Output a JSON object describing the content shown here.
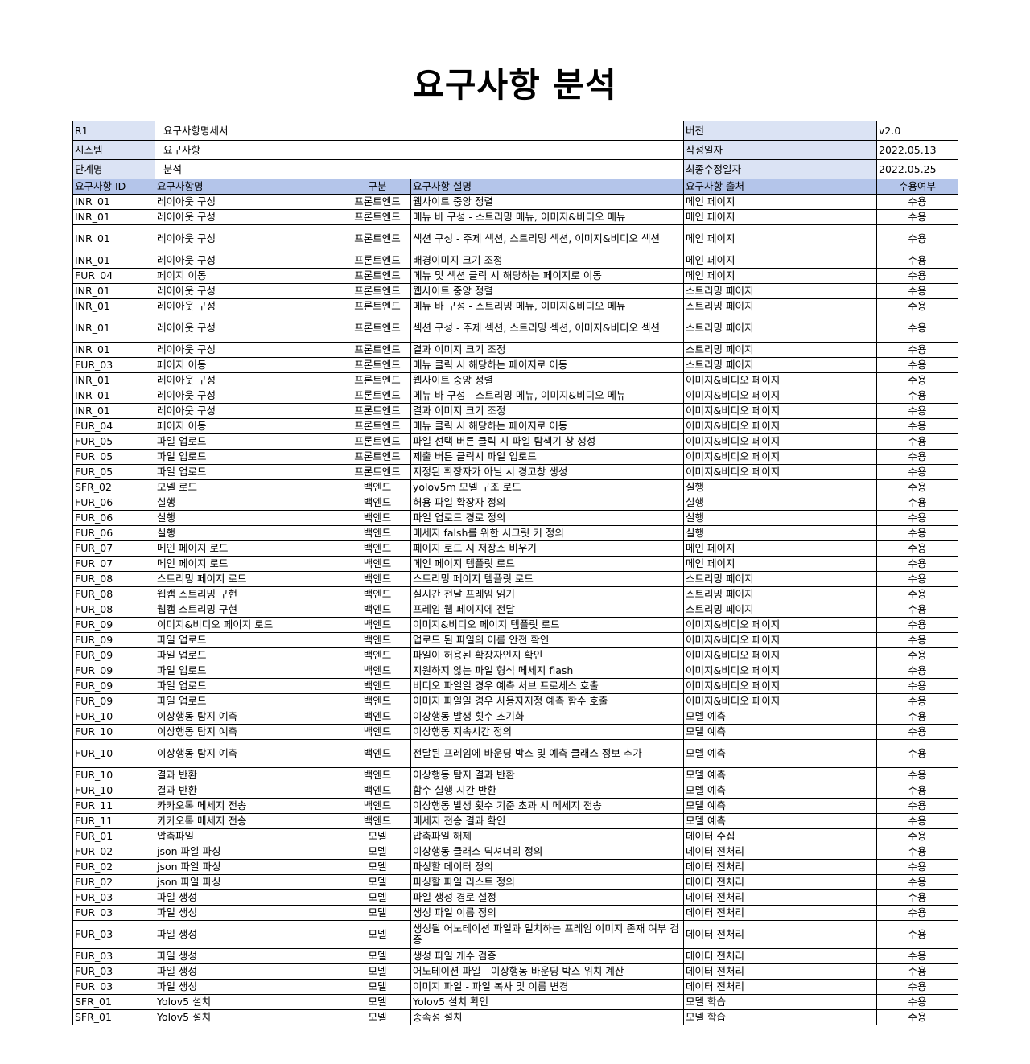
{
  "title": "요구사항 분석",
  "meta": [
    {
      "label": "R1",
      "value": "요구사항명세서",
      "label2": "버전",
      "value2": "v2.0"
    },
    {
      "label": "시스템",
      "value": "요구사항",
      "label2": "작성일자",
      "value2": "2022.05.13"
    },
    {
      "label": "단계명",
      "value": "분석",
      "label2": "최종수정일자",
      "value2": "2022.05.25"
    }
  ],
  "headers": [
    "요구사항 ID",
    "요구사항명",
    "구분",
    "요구사항 설명",
    "요구사항 출처",
    "수용여부"
  ],
  "rows": [
    [
      "INR_01",
      "레이아웃 구성",
      "프론트엔드",
      "웹사이트 중앙 정렬",
      "메인 페이지",
      "수용"
    ],
    [
      "INR_01",
      "레이아웃 구성",
      "프론트엔드",
      "메뉴 바 구성 - 스트리밍 메뉴, 이미지&비디오 메뉴",
      "메인 페이지",
      "수용"
    ],
    [
      "INR_01",
      "레이아웃 구성",
      "프론트엔드",
      "섹션 구성 - 주제 섹션, 스트리밍 섹션, 이미지&비디오 섹션",
      "메인 페이지",
      "수용"
    ],
    [
      "INR_01",
      "레이아웃 구성",
      "프론트엔드",
      "배경이미지 크기 조정",
      "메인 페이지",
      "수용"
    ],
    [
      "FUR_04",
      "페이지 이동",
      "프론트엔드",
      "메뉴 및 섹션 클릭 시 해당하는 페이지로 이동",
      "메인 페이지",
      "수용"
    ],
    [
      "INR_01",
      "레이아웃 구성",
      "프론트엔드",
      "웹사이트 중앙 정렬",
      "스트리밍 페이지",
      "수용"
    ],
    [
      "INR_01",
      "레이아웃 구성",
      "프론트엔드",
      "메뉴 바 구성 - 스트리밍 메뉴, 이미지&비디오 메뉴",
      "스트리밍 페이지",
      "수용"
    ],
    [
      "INR_01",
      "레이아웃 구성",
      "프론트엔드",
      "섹션 구성 - 주제 섹션, 스트리밍 섹션, 이미지&비디오 섹션",
      "스트리밍 페이지",
      "수용"
    ],
    [
      "INR_01",
      "레이아웃 구성",
      "프론트엔드",
      "결과 이미지 크기 조정",
      "스트리밍 페이지",
      "수용"
    ],
    [
      "FUR_03",
      "페이지 이동",
      "프론트엔드",
      "메뉴 클릭 시 해당하는 페이지로 이동",
      "스트리밍 페이지",
      "수용"
    ],
    [
      "INR_01",
      "레이아웃 구성",
      "프론트엔드",
      "웹사이트 중앙 정렬",
      "이미지&비디오 페이지",
      "수용"
    ],
    [
      "INR_01",
      "레이아웃 구성",
      "프론트엔드",
      "메뉴 바 구성 - 스트리밍 메뉴, 이미지&비디오 메뉴",
      "이미지&비디오 페이지",
      "수용"
    ],
    [
      "INR_01",
      "레이아웃 구성",
      "프론트엔드",
      "결과 이미지 크기 조정",
      "이미지&비디오 페이지",
      "수용"
    ],
    [
      "FUR_04",
      "페이지 이동",
      "프론트엔드",
      "메뉴 클릭 시 해당하는 페이지로 이동",
      "이미지&비디오 페이지",
      "수용"
    ],
    [
      "FUR_05",
      "파일 업로드",
      "프론트엔드",
      "파일 선택 버튼 클릭 시 파일 탐색기 창 생성",
      "이미지&비디오 페이지",
      "수용"
    ],
    [
      "FUR_05",
      "파일 업로드",
      "프론트엔드",
      "제출 버튼 클릭시 파일 업로드",
      "이미지&비디오 페이지",
      "수용"
    ],
    [
      "FUR_05",
      "파일 업로드",
      "프론트엔드",
      "지정된 확장자가 아닐 시 경고창 생성",
      "이미지&비디오 페이지",
      "수용"
    ],
    [
      "SFR_02",
      "모델 로드",
      "백엔드",
      "yolov5m 모델 구조 로드",
      "실행",
      "수용"
    ],
    [
      "FUR_06",
      "실행",
      "백엔드",
      "허용 파일 확장자 정의",
      "실행",
      "수용"
    ],
    [
      "FUR_06",
      "실행",
      "백엔드",
      "파일 업로드 경로 정의",
      "실행",
      "수용"
    ],
    [
      "FUR_06",
      "실행",
      "백엔드",
      "메세지 falsh를 위한 시크릿 키 정의",
      "실행",
      "수용"
    ],
    [
      "FUR_07",
      "메인 페이지 로드",
      "백엔드",
      "페이지 로드 시 저장소 비우기",
      "메인 페이지",
      "수용"
    ],
    [
      "FUR_07",
      "메인 페이지 로드",
      "백엔드",
      "메인 페이지 템플릿 로드",
      "메인 페이지",
      "수용"
    ],
    [
      "FUR_08",
      "스트리밍 페이지 로드",
      "백엔드",
      "스트리밍 페이지 템플릿 로드",
      "스트리밍 페이지",
      "수용"
    ],
    [
      "FUR_08",
      "웹캠 스트리밍 구현",
      "백엔드",
      "실시간 전달 프레임 읽기",
      "스트리밍 페이지",
      "수용"
    ],
    [
      "FUR_08",
      "웹캠 스트리밍 구현",
      "백엔드",
      "프레임 웹 페이지에 전달",
      "스트리밍 페이지",
      "수용"
    ],
    [
      "FUR_09",
      "이미지&비디오 페이지 로드",
      "백엔드",
      "이미지&비디오 페이지 템플릿 로드",
      "이미지&비디오 페이지",
      "수용"
    ],
    [
      "FUR_09",
      "파일 업로드",
      "백엔드",
      "업로드 된 파일의 이름 안전 확인",
      "이미지&비디오 페이지",
      "수용"
    ],
    [
      "FUR_09",
      "파일 업로드",
      "백엔드",
      "파일이 허용된 확장자인지 확인",
      "이미지&비디오 페이지",
      "수용"
    ],
    [
      "FUR_09",
      "파일 업로드",
      "백엔드",
      "지원하지 않는 파일 형식 메세지 flash",
      "이미지&비디오 페이지",
      "수용"
    ],
    [
      "FUR_09",
      "파일 업로드",
      "백엔드",
      "비디오 파일일 경우 예측 서브 프로세스 호출",
      "이미지&비디오 페이지",
      "수용"
    ],
    [
      "FUR_09",
      "파일 업로드",
      "백엔드",
      "이미지 파일일 경우 사용자지정 예측 함수 호출",
      "이미지&비디오 페이지",
      "수용"
    ],
    [
      "FUR_10",
      "이상행동 탐지 예측",
      "백엔드",
      "이상행동 발생 횟수 초기화",
      "모델 예측",
      "수용"
    ],
    [
      "FUR_10",
      "이상행동 탐지 예측",
      "백엔드",
      "이상행동 지속시간 정의",
      "모델 예측",
      "수용"
    ],
    [
      "FUR_10",
      "이상행동 탐지 예측",
      "백엔드",
      "전달된 프레임에 바운딩 박스 및 예측 클래스 정보 추가",
      "모델 예측",
      "수용"
    ],
    [
      "FUR_10",
      "결과 반환",
      "백엔드",
      "이상행동 탐지 결과 반환",
      "모델 예측",
      "수용"
    ],
    [
      "FUR_10",
      "결과 반환",
      "백엔드",
      "함수 실행 시간 반환",
      "모델 예측",
      "수용"
    ],
    [
      "FUR_11",
      "카카오톡 메세지 전송",
      "백엔드",
      "이상행동 발생 횟수 기준 초과 시 메세지 전송",
      "모델 예측",
      "수용"
    ],
    [
      "FUR_11",
      "카카오톡 메세지 전송",
      "백엔드",
      "메세지 전송 결과 확인",
      "모델 예측",
      "수용"
    ],
    [
      "FUR_01",
      "압축파일",
      "모델",
      "압축파일 해제",
      "데이터 수집",
      "수용"
    ],
    [
      "FUR_02",
      "json 파일 파싱",
      "모델",
      "이상행동 클래스 딕셔너리 정의",
      "데이터 전처리",
      "수용"
    ],
    [
      "FUR_02",
      "json 파일 파싱",
      "모델",
      "파싱할 데이터 정의",
      "데이터 전처리",
      "수용"
    ],
    [
      "FUR_02",
      "json 파일 파싱",
      "모델",
      "파싱할 파일 리스트 정의",
      "데이터 전처리",
      "수용"
    ],
    [
      "FUR_03",
      "파일 생성",
      "모델",
      "파일 생성 경로 설정",
      "데이터 전처리",
      "수용"
    ],
    [
      "FUR_03",
      "파일 생성",
      "모델",
      "생성 파일 이름 정의",
      "데이터 전처리",
      "수용"
    ],
    [
      "FUR_03",
      "파일 생성",
      "모델",
      "생성될 어노테이션 파일과 일치하는 프레임 이미지 존재 여부 검증",
      "데이터 전처리",
      "수용"
    ],
    [
      "FUR_03",
      "파일 생성",
      "모델",
      "생성 파일 개수 검증",
      "데이터 전처리",
      "수용"
    ],
    [
      "FUR_03",
      "파일 생성",
      "모델",
      "어노테이션 파일 - 이상행동 바운딩 박스 위치 계산",
      "데이터 전처리",
      "수용"
    ],
    [
      "FUR_03",
      "파일 생성",
      "모델",
      "이미지 파일 - 파일 복사 및 이름 변경",
      "데이터 전처리",
      "수용"
    ],
    [
      "SFR_01",
      "Yolov5 설치",
      "모델",
      "Yolov5 설치 확인",
      "모델 학습",
      "수용"
    ],
    [
      "SFR_01",
      "Yolov5 설치",
      "모델",
      "종속성 설치",
      "모델 학습",
      "수용"
    ]
  ]
}
